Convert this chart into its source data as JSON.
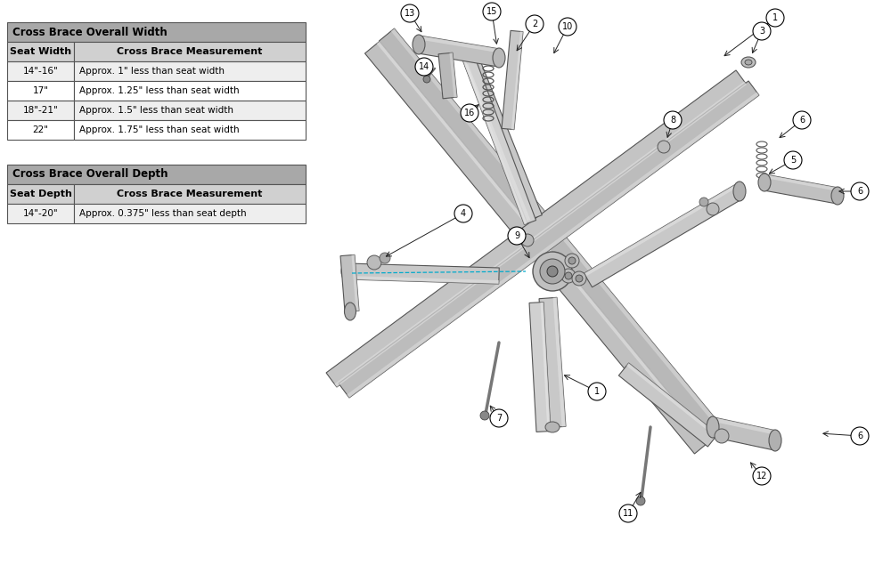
{
  "bg_color": "#ffffff",
  "table1": {
    "header": "Cross Brace Overall Width",
    "header_bg": "#a8a8a8",
    "col_header_bg": "#d0d0d0",
    "col1_header": "Seat Width",
    "col2_header": "Cross Brace Measurement",
    "rows": [
      [
        "14\"-16\"",
        "Approx. 1\" less than seat width"
      ],
      [
        "17\"",
        "Approx. 1.25\" less than seat width"
      ],
      [
        "18\"-21\"",
        "Approx. 1.5\" less than seat width"
      ],
      [
        "22\"",
        "Approx. 1.75\" less than seat width"
      ]
    ],
    "row_colors": [
      "#eeeeee",
      "#ffffff",
      "#eeeeee",
      "#ffffff"
    ]
  },
  "table2": {
    "header": "Cross Brace Overall Depth",
    "header_bg": "#a8a8a8",
    "col_header_bg": "#d0d0d0",
    "col1_header": "Seat Depth",
    "col2_header": "Cross Brace Measurement",
    "rows": [
      [
        "14\"-20\"",
        "Approx. 0.375\" less than seat depth"
      ]
    ],
    "row_colors": [
      "#eeeeee"
    ]
  }
}
